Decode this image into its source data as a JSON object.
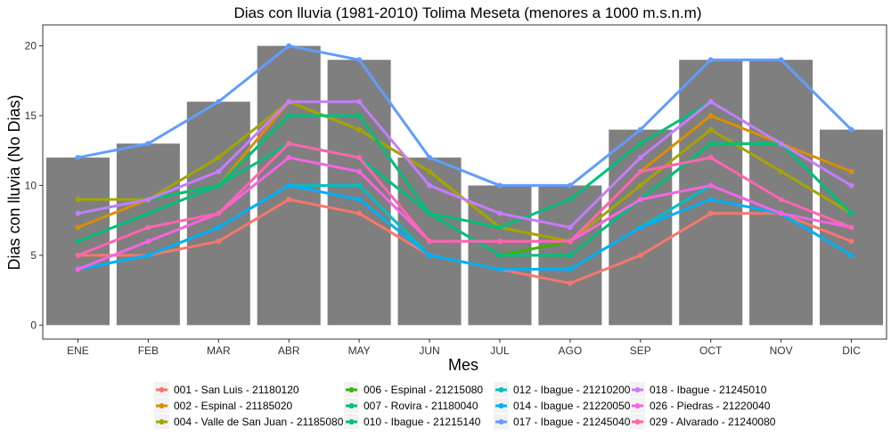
{
  "chart_data": {
    "type": "bar+line",
    "title": "Dias con lluvia (1981-2010) Tolima Meseta (menores a 1000 m.s.n.m)",
    "xlabel": "Mes",
    "ylabel": "Dias con lluvia (No Dias)",
    "categories": [
      "ENE",
      "FEB",
      "MAR",
      "ABR",
      "MAY",
      "JUN",
      "JUL",
      "AGO",
      "SEP",
      "OCT",
      "NOV",
      "DIC"
    ],
    "ylim": [
      -1,
      21.5
    ],
    "yticks": [
      0,
      5,
      10,
      15,
      20
    ],
    "grid": false,
    "legend_position": "bottom",
    "bars": {
      "values": [
        12,
        13,
        16,
        20,
        19,
        12,
        10,
        10,
        14,
        19,
        19,
        14
      ],
      "color": "#7f7f7f"
    },
    "series": [
      {
        "name": "001 - San Luis - 21180120",
        "color": "#F8766D",
        "values": [
          5,
          5,
          6,
          9,
          8,
          5,
          4,
          3,
          5,
          8,
          8,
          6
        ]
      },
      {
        "name": "002 - Espinal - 21185020",
        "color": "#D89000",
        "values": [
          7,
          9,
          10,
          16,
          14,
          11,
          7,
          6,
          11,
          15,
          13,
          11
        ]
      },
      {
        "name": "004 - Valle de San Juan - 21185080",
        "color": "#A3A500",
        "values": [
          9,
          9,
          12,
          16,
          14,
          11,
          7,
          6,
          10,
          14,
          11,
          8
        ]
      },
      {
        "name": "006 - Espinal - 21215080",
        "color": "#39B600",
        "values": [
          8,
          9,
          10,
          15,
          15,
          8,
          5,
          6,
          9,
          13,
          13,
          8
        ]
      },
      {
        "name": "007 - Rovira - 21180040",
        "color": "#00BF7D",
        "values": [
          8,
          9,
          10,
          13,
          12,
          8,
          5,
          5,
          9,
          13,
          13,
          8
        ]
      },
      {
        "name": "010 - Ibague - 21215140",
        "color": "#00BF7D",
        "values": [
          6,
          8,
          10,
          15,
          15,
          8,
          7,
          9,
          13,
          16,
          13,
          8
        ]
      },
      {
        "name": "012 - Ibague - 21210200",
        "color": "#00BFC4",
        "values": [
          4,
          5,
          7,
          10,
          10,
          5,
          4,
          4,
          7,
          10,
          8,
          5
        ]
      },
      {
        "name": "014 - Ibague - 21220050",
        "color": "#00B0F6",
        "values": [
          4,
          5,
          7,
          10,
          9,
          5,
          4,
          4,
          7,
          9,
          8,
          5
        ]
      },
      {
        "name": "017 - Ibague - 21245040",
        "color": "#619CFF",
        "values": [
          12,
          13,
          16,
          20,
          19,
          12,
          10,
          10,
          14,
          19,
          19,
          14
        ]
      },
      {
        "name": "018 - Ibague - 21245010",
        "color": "#C77CFF",
        "values": [
          8,
          9,
          11,
          16,
          16,
          10,
          8,
          7,
          12,
          16,
          13,
          10
        ]
      },
      {
        "name": "026 - Piedras - 21220040",
        "color": "#F564E3",
        "values": [
          4,
          6,
          8,
          12,
          11,
          6,
          6,
          6,
          9,
          10,
          8,
          7
        ]
      },
      {
        "name": "029 - Alvarado - 21240080",
        "color": "#FF64B0",
        "values": [
          5,
          7,
          8,
          13,
          12,
          6,
          6,
          6,
          11,
          12,
          9,
          7
        ]
      }
    ]
  }
}
